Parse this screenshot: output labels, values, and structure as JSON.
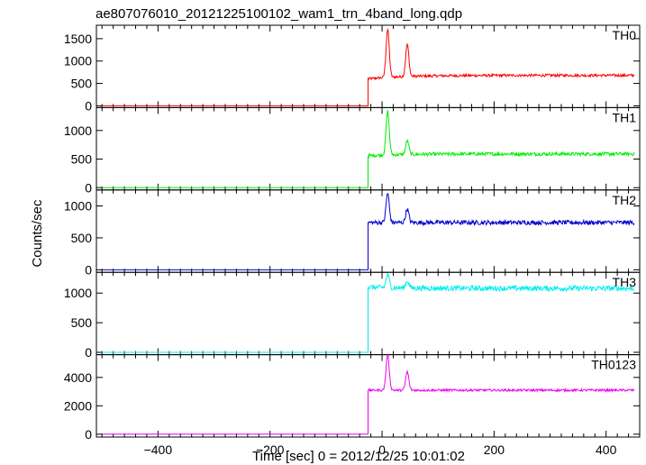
{
  "title": "ae807076010_20121225100102_wam1_trn_4band_long.qdp",
  "xlabel": "Time [sec] 0 = 2012/12/25 10:01:02",
  "ylabel": "Counts/sec",
  "chart_data": [
    {
      "type": "line",
      "name": "TH0",
      "color": "#ff0000",
      "xlim": [
        -510,
        460
      ],
      "ylim": [
        -40,
        1800
      ],
      "yticks": [
        0,
        500,
        1000,
        1500
      ],
      "xticks": [
        -400,
        -200,
        0,
        200,
        400
      ],
      "profile": {
        "pre_level": 0,
        "onset_x": -25,
        "plateau_start": 600,
        "peak1": {
          "x": 10,
          "y": 1750
        },
        "peak2": {
          "x": 45,
          "y": 1400
        },
        "level": 680,
        "noise": 30
      }
    },
    {
      "type": "line",
      "name": "TH1",
      "color": "#00ee00",
      "xlim": [
        -510,
        460
      ],
      "ylim": [
        -40,
        1400
      ],
      "yticks": [
        0,
        500,
        1000
      ],
      "xticks": [
        -400,
        -200,
        0,
        200,
        400
      ],
      "profile": {
        "pre_level": 0,
        "onset_x": -25,
        "plateau_start": 560,
        "peak1": {
          "x": 10,
          "y": 1350
        },
        "peak2": {
          "x": 45,
          "y": 830
        },
        "level": 590,
        "noise": 30
      }
    },
    {
      "type": "line",
      "name": "TH2",
      "color": "#0000cc",
      "xlim": [
        -510,
        460
      ],
      "ylim": [
        -40,
        1250
      ],
      "yticks": [
        0,
        500,
        1000
      ],
      "xticks": [
        -400,
        -200,
        0,
        200,
        400
      ],
      "profile": {
        "pre_level": 0,
        "onset_x": -25,
        "plateau_start": 740,
        "peak1": {
          "x": 10,
          "y": 1200
        },
        "peak2": {
          "x": 45,
          "y": 950
        },
        "level": 740,
        "noise": 35
      }
    },
    {
      "type": "line",
      "name": "TH3",
      "color": "#00eeee",
      "xlim": [
        -510,
        460
      ],
      "ylim": [
        -40,
        1350
      ],
      "yticks": [
        0,
        500,
        1000
      ],
      "xticks": [
        -400,
        -200,
        0,
        200,
        400
      ],
      "profile": {
        "pre_level": 0,
        "onset_x": -25,
        "plateau_start": 1100,
        "peak1": {
          "x": 10,
          "y": 1300
        },
        "peak2": {
          "x": 45,
          "y": 1200
        },
        "level": 1080,
        "noise": 45
      }
    },
    {
      "type": "line",
      "name": "TH0123",
      "color": "#ee00ee",
      "xlim": [
        -510,
        460
      ],
      "ylim": [
        -200,
        5600
      ],
      "yticks": [
        0,
        2000,
        4000
      ],
      "xticks": [
        -400,
        -200,
        0,
        200,
        400
      ],
      "xticklabels": [
        "−400",
        "−200",
        "0",
        "200",
        "400"
      ],
      "profile": {
        "pre_level": 0,
        "onset_x": -25,
        "plateau_start": 3100,
        "peak1": {
          "x": 10,
          "y": 5600
        },
        "peak2": {
          "x": 45,
          "y": 4400
        },
        "level": 3100,
        "noise": 80
      }
    }
  ]
}
